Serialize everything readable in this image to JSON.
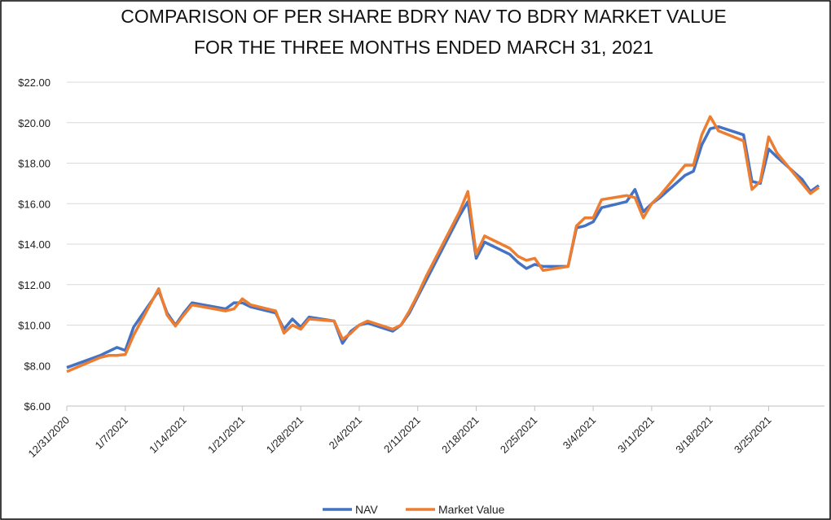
{
  "chart_data": {
    "type": "line",
    "title": "COMPARISON OF PER SHARE BDRY NAV TO BDRY MARKET VALUE",
    "subtitle": "FOR THE THREE MONTHS ENDED MARCH 31, 2021",
    "x": [
      "12/31/2020",
      "1/4/2021",
      "1/5/2021",
      "1/6/2021",
      "1/7/2021",
      "1/8/2021",
      "1/11/2021",
      "1/12/2021",
      "1/13/2021",
      "1/14/2021",
      "1/15/2021",
      "1/19/2021",
      "1/20/2021",
      "1/21/2021",
      "1/22/2021",
      "1/25/2021",
      "1/26/2021",
      "1/27/2021",
      "1/28/2021",
      "1/29/2021",
      "2/1/2021",
      "2/2/2021",
      "2/3/2021",
      "2/4/2021",
      "2/5/2021",
      "2/8/2021",
      "2/9/2021",
      "2/10/2021",
      "2/11/2021",
      "2/12/2021",
      "2/16/2021",
      "2/17/2021",
      "2/18/2021",
      "2/19/2021",
      "2/22/2021",
      "2/23/2021",
      "2/24/2021",
      "2/25/2021",
      "2/26/2021",
      "3/1/2021",
      "3/2/2021",
      "3/3/2021",
      "3/4/2021",
      "3/5/2021",
      "3/8/2021",
      "3/9/2021",
      "3/10/2021",
      "3/11/2021",
      "3/12/2021",
      "3/15/2021",
      "3/16/2021",
      "3/17/2021",
      "3/18/2021",
      "3/19/2021",
      "3/22/2021",
      "3/23/2021",
      "3/24/2021",
      "3/25/2021",
      "3/26/2021",
      "3/29/2021",
      "3/30/2021",
      "3/31/2021"
    ],
    "series": [
      {
        "name": "NAV",
        "color": "#4472c4",
        "values": [
          7.9,
          8.5,
          8.7,
          8.9,
          8.75,
          9.9,
          11.7,
          10.6,
          10.0,
          10.6,
          11.1,
          10.8,
          11.1,
          11.1,
          10.9,
          10.6,
          9.8,
          10.3,
          9.9,
          10.4,
          10.2,
          9.1,
          9.7,
          10.0,
          10.1,
          9.7,
          10.0,
          10.6,
          11.4,
          12.2,
          15.4,
          16.1,
          13.3,
          14.1,
          13.5,
          13.1,
          12.8,
          13.0,
          12.9,
          12.9,
          14.8,
          14.9,
          15.1,
          15.8,
          16.1,
          16.7,
          15.6,
          16.0,
          16.3,
          17.4,
          17.6,
          18.9,
          19.7,
          19.8,
          19.4,
          17.1,
          17.0,
          18.7,
          18.3,
          17.2,
          16.6,
          16.9
        ]
      },
      {
        "name": "Market Value",
        "color": "#ed7d31",
        "values": [
          7.7,
          8.4,
          8.5,
          8.5,
          8.55,
          9.5,
          11.8,
          10.5,
          9.95,
          10.5,
          11.0,
          10.7,
          10.8,
          11.3,
          11.0,
          10.7,
          9.6,
          10.0,
          9.8,
          10.3,
          10.2,
          9.3,
          9.6,
          10.0,
          10.2,
          9.8,
          10.0,
          10.7,
          11.5,
          12.4,
          15.6,
          16.6,
          13.5,
          14.4,
          13.8,
          13.4,
          13.2,
          13.3,
          12.7,
          12.9,
          14.9,
          15.3,
          15.3,
          16.2,
          16.4,
          16.3,
          15.3,
          16.0,
          16.4,
          17.9,
          17.9,
          19.4,
          20.3,
          19.6,
          19.1,
          16.7,
          17.1,
          19.3,
          18.5,
          17.0,
          16.5,
          16.8
        ]
      }
    ],
    "xlim": [
      "12/31/2020",
      "3/31/2021"
    ],
    "xticks": [
      "12/31/2020",
      "1/7/2021",
      "1/14/2021",
      "1/21/2021",
      "1/28/2021",
      "2/4/2021",
      "2/11/2021",
      "2/18/2021",
      "2/25/2021",
      "3/4/2021",
      "3/11/2021",
      "3/18/2021",
      "3/25/2021"
    ],
    "ylim": [
      6,
      22
    ],
    "yticks": [
      {
        "value": 6,
        "label": "$6.00"
      },
      {
        "value": 8,
        "label": "$8.00"
      },
      {
        "value": 10,
        "label": "$10.00"
      },
      {
        "value": 12,
        "label": "$12.00"
      },
      {
        "value": 14,
        "label": "$14.00"
      },
      {
        "value": 16,
        "label": "$16.00"
      },
      {
        "value": 18,
        "label": "$18.00"
      },
      {
        "value": 20,
        "label": "$20.00"
      },
      {
        "value": 22,
        "label": "$22.00"
      }
    ],
    "grid": true,
    "legend": "bottom"
  }
}
